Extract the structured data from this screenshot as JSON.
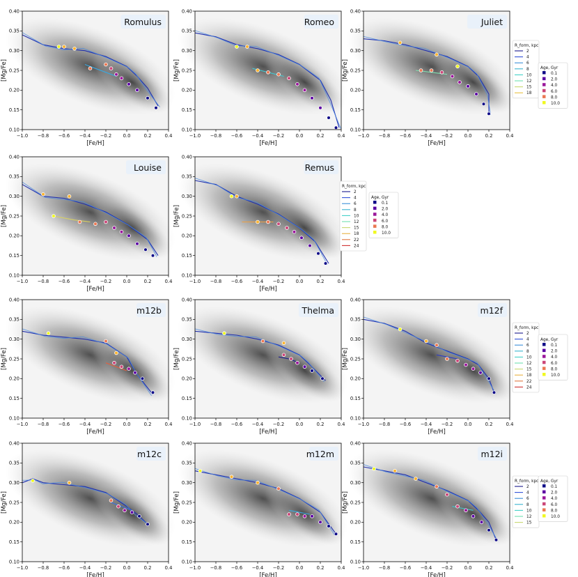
{
  "figure": {
    "x_label": "[Fe/H]",
    "y_label": "[Mg/Fe]",
    "x_ticks": [
      "−1.0",
      "−0.8",
      "−0.6",
      "−0.4",
      "−0.2",
      "0.0",
      "0.2",
      "0.4"
    ],
    "y_ticks": [
      "0.10",
      "0.15",
      "0.20",
      "0.25",
      "0.30",
      "0.35",
      "0.40"
    ],
    "rform_legend_title": "R_form, kpc",
    "age_legend_title": "Age, Gyr"
  },
  "colors": {
    "age_ramp": [
      "#0d0887",
      "#5b02a3",
      "#9a179b",
      "#cb4678",
      "#eb7852",
      "#fbb32f",
      "#f0f921"
    ],
    "panel_bg": "#ffffff",
    "title_box": "#e8f1fb"
  },
  "legends": [
    {
      "id": "juliet",
      "rform": [
        [
          "2",
          "#1a1a8c"
        ],
        [
          "4",
          "#3050d8"
        ],
        [
          "6",
          "#3a8fd8"
        ],
        [
          "8",
          "#38b4d0"
        ],
        [
          "10",
          "#40d0c8"
        ],
        [
          "12",
          "#6ee0b0"
        ],
        [
          "15",
          "#c8d870"
        ],
        [
          "18",
          "#e8c040"
        ]
      ],
      "age": [
        [
          "0.1",
          "#0d0887"
        ],
        [
          "2.0",
          "#5b02a3"
        ],
        [
          "4.0",
          "#9a179b"
        ],
        [
          "6.0",
          "#cb4678"
        ],
        [
          "8.0",
          "#eb7852"
        ],
        [
          "10.0",
          "#f0f921"
        ]
      ]
    },
    {
      "id": "remus",
      "rform": [
        [
          "2",
          "#1a1a8c"
        ],
        [
          "4",
          "#3050d8"
        ],
        [
          "6",
          "#3a8fd8"
        ],
        [
          "8",
          "#38b4d0"
        ],
        [
          "10",
          "#40d0c8"
        ],
        [
          "12",
          "#6ee0b0"
        ],
        [
          "15",
          "#c8d870"
        ],
        [
          "18",
          "#e8b040"
        ],
        [
          "22",
          "#e07840"
        ],
        [
          "24",
          "#d03030"
        ]
      ],
      "age": [
        [
          "0.1",
          "#0d0887"
        ],
        [
          "2.0",
          "#5b02a3"
        ],
        [
          "4.0",
          "#9a179b"
        ],
        [
          "6.0",
          "#cb4678"
        ],
        [
          "8.0",
          "#eb7852"
        ],
        [
          "10.0",
          "#f0f921"
        ]
      ]
    },
    {
      "id": "m12f",
      "rform": [
        [
          "2",
          "#1a1a8c"
        ],
        [
          "4",
          "#3050d8"
        ],
        [
          "6",
          "#3a8fd8"
        ],
        [
          "8",
          "#38b4d0"
        ],
        [
          "10",
          "#40d0c8"
        ],
        [
          "12",
          "#6ee0b0"
        ],
        [
          "15",
          "#c8d870"
        ],
        [
          "18",
          "#e8b040"
        ],
        [
          "22",
          "#e07840"
        ],
        [
          "24",
          "#d03030"
        ]
      ],
      "age": [
        [
          "0.1",
          "#0d0887"
        ],
        [
          "2.0",
          "#5b02a3"
        ],
        [
          "4.0",
          "#9a179b"
        ],
        [
          "6.0",
          "#cb4678"
        ],
        [
          "8.0",
          "#eb7852"
        ],
        [
          "10.0",
          "#f0f921"
        ]
      ]
    },
    {
      "id": "m12i",
      "rform": [
        [
          "2",
          "#1a1a8c"
        ],
        [
          "4",
          "#3050d8"
        ],
        [
          "6",
          "#3a8fd8"
        ],
        [
          "8",
          "#38b4d0"
        ],
        [
          "10",
          "#40d0c8"
        ],
        [
          "12",
          "#6ee0b0"
        ],
        [
          "15",
          "#c8d870"
        ]
      ],
      "age": [
        [
          "0.1",
          "#0d0887"
        ],
        [
          "2.0",
          "#5b02a3"
        ],
        [
          "4.0",
          "#9a179b"
        ],
        [
          "6.0",
          "#cb4678"
        ],
        [
          "8.0",
          "#eb7852"
        ],
        [
          "10.0",
          "#f0f921"
        ]
      ]
    }
  ],
  "chart_data": [
    {
      "type": "scatter",
      "title": "Romulus",
      "xlim": [
        -1.0,
        0.4
      ],
      "ylim": [
        0.1,
        0.4
      ],
      "track": [
        [
          -1.0,
          0.34
        ],
        [
          -0.8,
          0.315
        ],
        [
          -0.6,
          0.305
        ],
        [
          -0.4,
          0.3
        ],
        [
          -0.2,
          0.285
        ],
        [
          0.0,
          0.26
        ],
        [
          0.1,
          0.235
        ],
        [
          0.2,
          0.205
        ],
        [
          0.3,
          0.16
        ]
      ],
      "alt_track": [
        [
          -0.4,
          0.265
        ],
        [
          -0.3,
          0.255
        ],
        [
          -0.2,
          0.245
        ],
        [
          -0.1,
          0.235
        ]
      ],
      "points": [
        [
          0.28,
          0.155
        ],
        [
          0.2,
          0.18
        ],
        [
          0.1,
          0.2
        ],
        [
          0.02,
          0.215
        ],
        [
          -0.05,
          0.23
        ],
        [
          -0.1,
          0.24
        ],
        [
          -0.15,
          0.255
        ],
        [
          -0.2,
          0.265
        ],
        [
          -0.35,
          0.255
        ],
        [
          -0.5,
          0.305
        ],
        [
          -0.6,
          0.31
        ],
        [
          -0.65,
          0.31
        ]
      ]
    },
    {
      "type": "scatter",
      "title": "Romeo",
      "xlim": [
        -1.0,
        0.4
      ],
      "ylim": [
        0.1,
        0.4
      ],
      "track": [
        [
          -1.0,
          0.345
        ],
        [
          -0.8,
          0.335
        ],
        [
          -0.6,
          0.315
        ],
        [
          -0.4,
          0.305
        ],
        [
          -0.2,
          0.29
        ],
        [
          0.0,
          0.265
        ],
        [
          0.2,
          0.225
        ],
        [
          0.3,
          0.175
        ],
        [
          0.38,
          0.105
        ]
      ],
      "alt_track": [
        [
          -0.45,
          0.255
        ],
        [
          -0.3,
          0.245
        ],
        [
          -0.15,
          0.235
        ]
      ],
      "points": [
        [
          0.35,
          0.105
        ],
        [
          0.28,
          0.13
        ],
        [
          0.2,
          0.155
        ],
        [
          0.12,
          0.18
        ],
        [
          0.05,
          0.2
        ],
        [
          -0.02,
          0.215
        ],
        [
          -0.1,
          0.23
        ],
        [
          -0.2,
          0.24
        ],
        [
          -0.3,
          0.245
        ],
        [
          -0.4,
          0.25
        ],
        [
          -0.5,
          0.31
        ],
        [
          -0.6,
          0.31
        ]
      ]
    },
    {
      "type": "scatter",
      "title": "Juliet",
      "xlim": [
        -1.0,
        0.4
      ],
      "ylim": [
        0.1,
        0.4
      ],
      "track": [
        [
          -1.0,
          0.33
        ],
        [
          -0.8,
          0.325
        ],
        [
          -0.6,
          0.315
        ],
        [
          -0.4,
          0.3
        ],
        [
          -0.2,
          0.285
        ],
        [
          0.0,
          0.26
        ],
        [
          0.1,
          0.235
        ],
        [
          0.2,
          0.19
        ],
        [
          0.2,
          0.14
        ]
      ],
      "alt_track": [
        [
          -0.5,
          0.25
        ],
        [
          -0.35,
          0.245
        ],
        [
          -0.2,
          0.24
        ]
      ],
      "points": [
        [
          0.2,
          0.14
        ],
        [
          0.15,
          0.165
        ],
        [
          0.08,
          0.19
        ],
        [
          0.0,
          0.21
        ],
        [
          -0.08,
          0.22
        ],
        [
          -0.15,
          0.235
        ],
        [
          -0.25,
          0.245
        ],
        [
          -0.35,
          0.25
        ],
        [
          -0.45,
          0.25
        ],
        [
          -0.65,
          0.32
        ],
        [
          -0.3,
          0.29
        ],
        [
          -0.1,
          0.26
        ]
      ]
    },
    {
      "type": "scatter",
      "title": "Louise",
      "xlim": [
        -1.0,
        0.4
      ],
      "ylim": [
        0.1,
        0.4
      ],
      "track": [
        [
          -1.0,
          0.33
        ],
        [
          -0.8,
          0.3
        ],
        [
          -0.6,
          0.295
        ],
        [
          -0.4,
          0.28
        ],
        [
          -0.2,
          0.26
        ],
        [
          0.0,
          0.23
        ],
        [
          0.2,
          0.19
        ],
        [
          0.3,
          0.15
        ]
      ],
      "alt_track": [
        [
          -0.7,
          0.25
        ],
        [
          -0.5,
          0.24
        ],
        [
          -0.35,
          0.235
        ]
      ],
      "points": [
        [
          0.25,
          0.15
        ],
        [
          0.18,
          0.165
        ],
        [
          0.1,
          0.18
        ],
        [
          0.02,
          0.2
        ],
        [
          -0.05,
          0.21
        ],
        [
          -0.12,
          0.22
        ],
        [
          -0.2,
          0.235
        ],
        [
          -0.3,
          0.23
        ],
        [
          -0.45,
          0.235
        ],
        [
          -0.55,
          0.3
        ],
        [
          -0.8,
          0.305
        ],
        [
          -0.7,
          0.25
        ]
      ]
    },
    {
      "type": "scatter",
      "title": "Remus",
      "xlim": [
        -1.0,
        0.4
      ],
      "ylim": [
        0.1,
        0.4
      ],
      "track": [
        [
          -1.0,
          0.34
        ],
        [
          -0.8,
          0.33
        ],
        [
          -0.6,
          0.3
        ],
        [
          -0.4,
          0.28
        ],
        [
          -0.2,
          0.255
        ],
        [
          0.0,
          0.22
        ],
        [
          0.15,
          0.185
        ],
        [
          0.28,
          0.13
        ]
      ],
      "alt_track": [
        [
          -0.55,
          0.235
        ],
        [
          -0.4,
          0.235
        ],
        [
          -0.25,
          0.235
        ]
      ],
      "points": [
        [
          0.25,
          0.13
        ],
        [
          0.18,
          0.155
        ],
        [
          0.1,
          0.175
        ],
        [
          0.02,
          0.195
        ],
        [
          -0.05,
          0.21
        ],
        [
          -0.12,
          0.22
        ],
        [
          -0.2,
          0.23
        ],
        [
          -0.3,
          0.235
        ],
        [
          -0.4,
          0.235
        ],
        [
          -0.6,
          0.3
        ],
        [
          -0.65,
          0.3
        ]
      ]
    },
    {
      "type": "scatter",
      "title": "m12b",
      "xlim": [
        -1.0,
        0.4
      ],
      "ylim": [
        0.1,
        0.4
      ],
      "track": [
        [
          -1.0,
          0.32
        ],
        [
          -0.8,
          0.31
        ],
        [
          -0.6,
          0.305
        ],
        [
          -0.4,
          0.3
        ],
        [
          -0.2,
          0.29
        ],
        [
          0.0,
          0.255
        ],
        [
          0.1,
          0.21
        ],
        [
          0.25,
          0.16
        ]
      ],
      "alt_track": [
        [
          -0.2,
          0.24
        ],
        [
          -0.1,
          0.23
        ],
        [
          0.0,
          0.22
        ]
      ],
      "points": [
        [
          0.25,
          0.165
        ],
        [
          0.15,
          0.2
        ],
        [
          0.08,
          0.215
        ],
        [
          0.02,
          0.225
        ],
        [
          -0.05,
          0.23
        ],
        [
          -0.12,
          0.24
        ],
        [
          -0.2,
          0.295
        ],
        [
          -0.1,
          0.265
        ],
        [
          -0.75,
          0.315
        ]
      ]
    },
    {
      "type": "scatter",
      "title": "Thelma",
      "xlim": [
        -1.0,
        0.4
      ],
      "ylim": [
        0.1,
        0.4
      ],
      "track": [
        [
          -1.0,
          0.32
        ],
        [
          -0.8,
          0.315
        ],
        [
          -0.6,
          0.31
        ],
        [
          -0.4,
          0.3
        ],
        [
          -0.2,
          0.285
        ],
        [
          0.0,
          0.26
        ],
        [
          0.1,
          0.235
        ],
        [
          0.25,
          0.195
        ]
      ],
      "alt_track": [
        [
          -0.2,
          0.255
        ],
        [
          -0.1,
          0.25
        ],
        [
          0.0,
          0.24
        ]
      ],
      "points": [
        [
          0.22,
          0.2
        ],
        [
          0.12,
          0.22
        ],
        [
          0.05,
          0.23
        ],
        [
          -0.02,
          0.24
        ],
        [
          -0.08,
          0.25
        ],
        [
          -0.15,
          0.26
        ],
        [
          -0.35,
          0.295
        ],
        [
          -0.15,
          0.29
        ],
        [
          -0.72,
          0.315
        ]
      ]
    },
    {
      "type": "scatter",
      "title": "m12f",
      "xlim": [
        -1.0,
        0.4
      ],
      "ylim": [
        0.1,
        0.4
      ],
      "track": [
        [
          -1.0,
          0.35
        ],
        [
          -0.8,
          0.34
        ],
        [
          -0.6,
          0.32
        ],
        [
          -0.4,
          0.29
        ],
        [
          -0.2,
          0.27
        ],
        [
          0.0,
          0.25
        ],
        [
          0.1,
          0.235
        ],
        [
          0.2,
          0.2
        ],
        [
          0.25,
          0.165
        ]
      ],
      "alt_track": [
        [
          -0.3,
          0.26
        ],
        [
          -0.2,
          0.255
        ],
        [
          -0.1,
          0.25
        ]
      ],
      "points": [
        [
          0.25,
          0.165
        ],
        [
          0.2,
          0.2
        ],
        [
          0.12,
          0.215
        ],
        [
          0.05,
          0.225
        ],
        [
          -0.02,
          0.235
        ],
        [
          -0.1,
          0.245
        ],
        [
          -0.2,
          0.25
        ],
        [
          -0.3,
          0.285
        ],
        [
          -0.4,
          0.295
        ],
        [
          -0.65,
          0.325
        ]
      ]
    },
    {
      "type": "scatter",
      "title": "m12c",
      "xlim": [
        -1.0,
        0.4
      ],
      "ylim": [
        0.1,
        0.4
      ],
      "track": [
        [
          -1.0,
          0.3
        ],
        [
          -0.9,
          0.31
        ],
        [
          -0.8,
          0.3
        ],
        [
          -0.6,
          0.295
        ],
        [
          -0.4,
          0.29
        ],
        [
          -0.2,
          0.275
        ],
        [
          0.0,
          0.24
        ],
        [
          0.1,
          0.22
        ],
        [
          0.2,
          0.195
        ]
      ],
      "alt_track": [
        [
          -0.15,
          0.25
        ],
        [
          -0.05,
          0.24
        ],
        [
          0.05,
          0.23
        ]
      ],
      "points": [
        [
          0.2,
          0.195
        ],
        [
          0.12,
          0.215
        ],
        [
          0.05,
          0.225
        ],
        [
          -0.02,
          0.23
        ],
        [
          -0.08,
          0.24
        ],
        [
          -0.15,
          0.255
        ],
        [
          -0.55,
          0.3
        ],
        [
          -0.9,
          0.305
        ]
      ]
    },
    {
      "type": "scatter",
      "title": "m12m",
      "xlim": [
        -1.0,
        0.4
      ],
      "ylim": [
        0.1,
        0.4
      ],
      "track": [
        [
          -1.0,
          0.33
        ],
        [
          -0.8,
          0.32
        ],
        [
          -0.6,
          0.31
        ],
        [
          -0.4,
          0.3
        ],
        [
          -0.2,
          0.285
        ],
        [
          0.0,
          0.26
        ],
        [
          0.2,
          0.225
        ],
        [
          0.35,
          0.17
        ]
      ],
      "alt_track": [
        [
          -0.1,
          0.23
        ],
        [
          0.0,
          0.225
        ],
        [
          0.1,
          0.22
        ]
      ],
      "points": [
        [
          0.35,
          0.17
        ],
        [
          0.28,
          0.19
        ],
        [
          0.2,
          0.2
        ],
        [
          0.12,
          0.215
        ],
        [
          0.05,
          0.215
        ],
        [
          -0.02,
          0.22
        ],
        [
          -0.1,
          0.22
        ],
        [
          -0.2,
          0.285
        ],
        [
          -0.4,
          0.3
        ],
        [
          -0.65,
          0.315
        ],
        [
          -0.95,
          0.33
        ]
      ]
    },
    {
      "type": "scatter",
      "title": "m12i",
      "xlim": [
        -1.0,
        0.4
      ],
      "ylim": [
        0.1,
        0.4
      ],
      "track": [
        [
          -1.0,
          0.34
        ],
        [
          -0.8,
          0.33
        ],
        [
          -0.6,
          0.32
        ],
        [
          -0.4,
          0.3
        ],
        [
          -0.2,
          0.28
        ],
        [
          0.0,
          0.255
        ],
        [
          0.1,
          0.23
        ],
        [
          0.2,
          0.2
        ],
        [
          0.27,
          0.155
        ]
      ],
      "alt_track": [
        [
          -0.15,
          0.24
        ],
        [
          -0.05,
          0.235
        ],
        [
          0.05,
          0.23
        ]
      ],
      "points": [
        [
          0.27,
          0.155
        ],
        [
          0.2,
          0.18
        ],
        [
          0.13,
          0.2
        ],
        [
          0.05,
          0.215
        ],
        [
          -0.02,
          0.23
        ],
        [
          -0.1,
          0.24
        ],
        [
          -0.2,
          0.27
        ],
        [
          -0.3,
          0.29
        ],
        [
          -0.5,
          0.31
        ],
        [
          -0.7,
          0.33
        ],
        [
          -0.9,
          0.335
        ]
      ]
    }
  ]
}
